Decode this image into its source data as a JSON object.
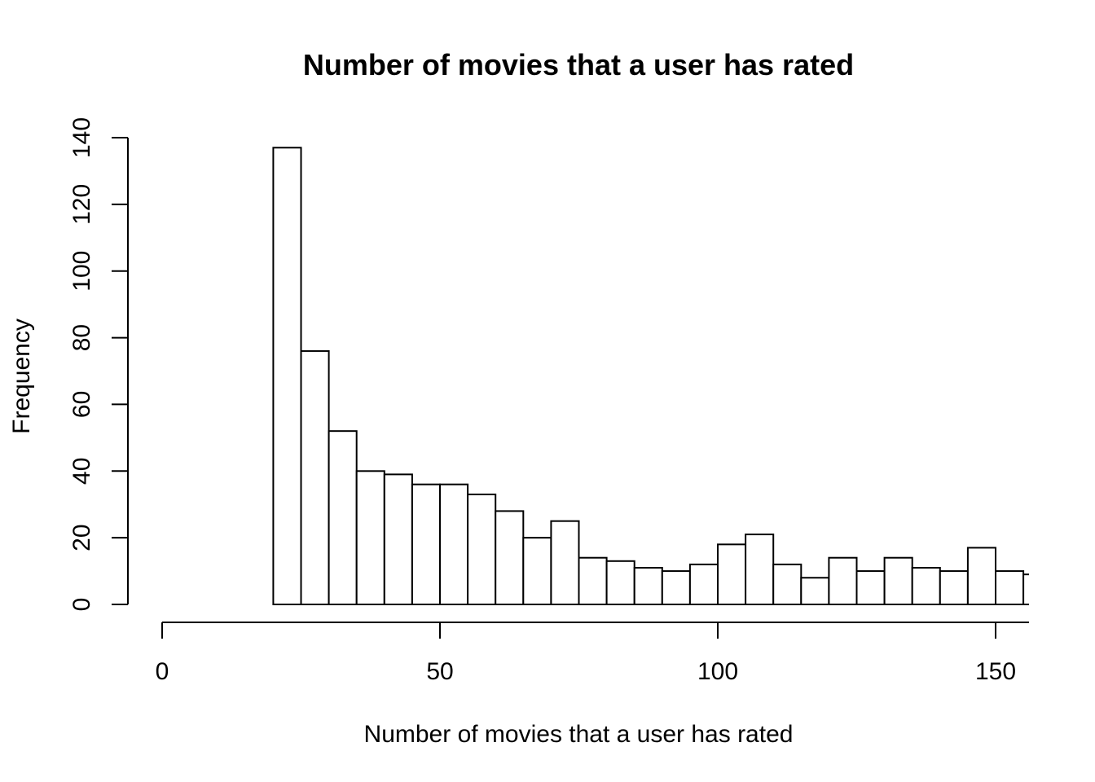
{
  "chart_data": {
    "type": "bar",
    "title": "Number of movies that a user has rated",
    "xlabel": "Number of movies that a user has rated",
    "ylabel": "Frequency",
    "bin_width": 5,
    "xlim": [
      0,
      155
    ],
    "ylim": [
      0,
      140
    ],
    "x_ticks": [
      0,
      50,
      100,
      150
    ],
    "y_ticks": [
      0,
      20,
      40,
      60,
      80,
      100,
      120,
      140
    ],
    "bins": [
      {
        "start": 20,
        "end": 25,
        "count": 137
      },
      {
        "start": 25,
        "end": 30,
        "count": 76
      },
      {
        "start": 30,
        "end": 35,
        "count": 52
      },
      {
        "start": 35,
        "end": 40,
        "count": 40
      },
      {
        "start": 40,
        "end": 45,
        "count": 39
      },
      {
        "start": 45,
        "end": 50,
        "count": 36
      },
      {
        "start": 50,
        "end": 55,
        "count": 36
      },
      {
        "start": 55,
        "end": 60,
        "count": 33
      },
      {
        "start": 60,
        "end": 65,
        "count": 28
      },
      {
        "start": 65,
        "end": 70,
        "count": 20
      },
      {
        "start": 70,
        "end": 75,
        "count": 25
      },
      {
        "start": 75,
        "end": 80,
        "count": 14
      },
      {
        "start": 80,
        "end": 85,
        "count": 13
      },
      {
        "start": 85,
        "end": 90,
        "count": 11
      },
      {
        "start": 90,
        "end": 95,
        "count": 10
      },
      {
        "start": 95,
        "end": 100,
        "count": 12
      },
      {
        "start": 100,
        "end": 105,
        "count": 18
      },
      {
        "start": 105,
        "end": 110,
        "count": 21
      },
      {
        "start": 110,
        "end": 115,
        "count": 12
      },
      {
        "start": 115,
        "end": 120,
        "count": 8
      },
      {
        "start": 120,
        "end": 125,
        "count": 14
      },
      {
        "start": 125,
        "end": 130,
        "count": 10
      },
      {
        "start": 130,
        "end": 135,
        "count": 14
      },
      {
        "start": 135,
        "end": 140,
        "count": 11
      },
      {
        "start": 140,
        "end": 145,
        "count": 10
      },
      {
        "start": 145,
        "end": 150,
        "count": 17
      },
      {
        "start": 150,
        "end": 155,
        "count": 10
      },
      {
        "start": 155,
        "end": 160,
        "count": 9
      }
    ],
    "grid": false,
    "colors": {
      "bar_fill": "#ffffff",
      "bar_stroke": "#000000"
    }
  }
}
